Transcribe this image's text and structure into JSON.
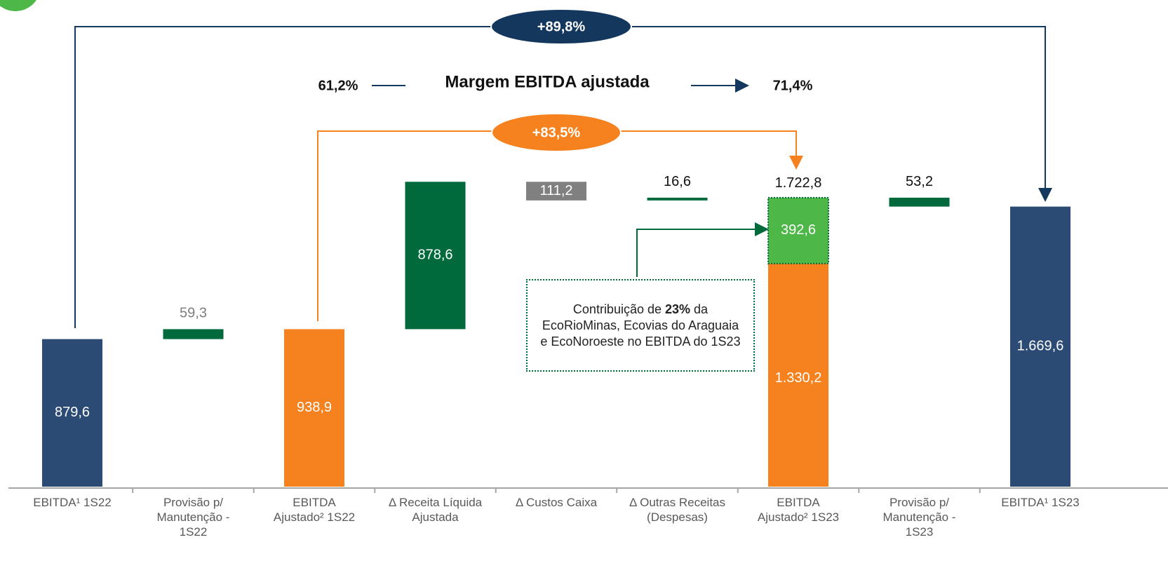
{
  "chart_data": {
    "type": "waterfall",
    "categories": [
      "EBITDA¹ 1S22",
      "Provisão p/ Manutenção - 1S22",
      "EBITDA Ajustado² 1S22",
      "Δ Receita Líquida Ajustada",
      "Δ Custos Caixa",
      "Δ Outras Receitas (Despesas)",
      "EBITDA Ajustado² 1S23",
      "Provisão p/ Manutenção - 1S23",
      "EBITDA¹ 1S23"
    ],
    "values": [
      879.6,
      59.3,
      938.9,
      878.6,
      -111.2,
      16.6,
      1722.8,
      -53.2,
      1669.6
    ],
    "value_labels": [
      "879,6",
      "59,3",
      "938,9",
      "878,6",
      "111,2",
      "16,6",
      "1.722,8",
      "53,2",
      "1.669,6"
    ],
    "totals": [
      true,
      false,
      true,
      false,
      false,
      false,
      true,
      false,
      true
    ],
    "colors": [
      "#2b4a74",
      "#006a3c",
      "#f5821f",
      "#006a3c",
      "#808080",
      "#006a3c",
      "#f5821f",
      "#006a3c",
      "#2b4a74"
    ],
    "label_inside": [
      true,
      false,
      true,
      true,
      true,
      false,
      false,
      false,
      true
    ],
    "label_colors": [
      "#ffffff",
      "#7f7f7f",
      "#ffffff",
      "#ffffff",
      "#ffffff",
      "#111111",
      "#111111",
      "#111111",
      "#ffffff"
    ],
    "breakdown": {
      "category_index": 6,
      "values": [
        1330.2,
        392.6
      ],
      "value_labels": [
        "1.330,2",
        "392,6"
      ],
      "colors": [
        "#f5821f",
        "#4db848"
      ]
    },
    "annotations": {
      "total_growth": "+89,8%",
      "adjusted_growth": "+83,5%",
      "margin_title": "Margem EBITDA ajustada",
      "margin_start": "61,2%",
      "margin_end": "71,4%",
      "note": [
        "Contribuição de ",
        "23%",
        " da EcoRioMinas, Ecovias do Araguaia e EcoNoroeste no EBITDA do 1S23"
      ]
    }
  }
}
